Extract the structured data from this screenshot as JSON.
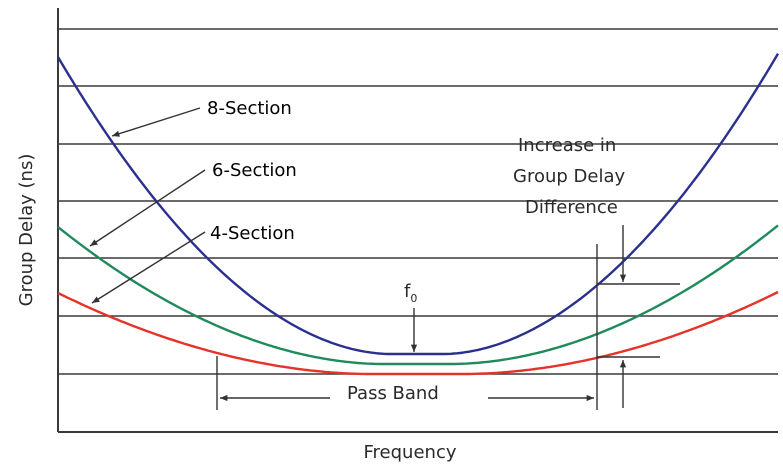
{
  "chart_data": {
    "type": "line",
    "xlabel": "Frequency",
    "ylabel": "Group Delay (ns)",
    "grid": true,
    "series": [
      {
        "name": "8-Section",
        "color": "#2b2f8f"
      },
      {
        "name": "6-Section",
        "color": "#1f8a5c"
      },
      {
        "name": "4-Section",
        "color": "#e5332a"
      }
    ],
    "annotations": {
      "f0": "f",
      "f0_sub": "0",
      "increase": [
        "Increase in",
        "Group Delay",
        "Difference"
      ],
      "passband": "Pass Band"
    }
  }
}
